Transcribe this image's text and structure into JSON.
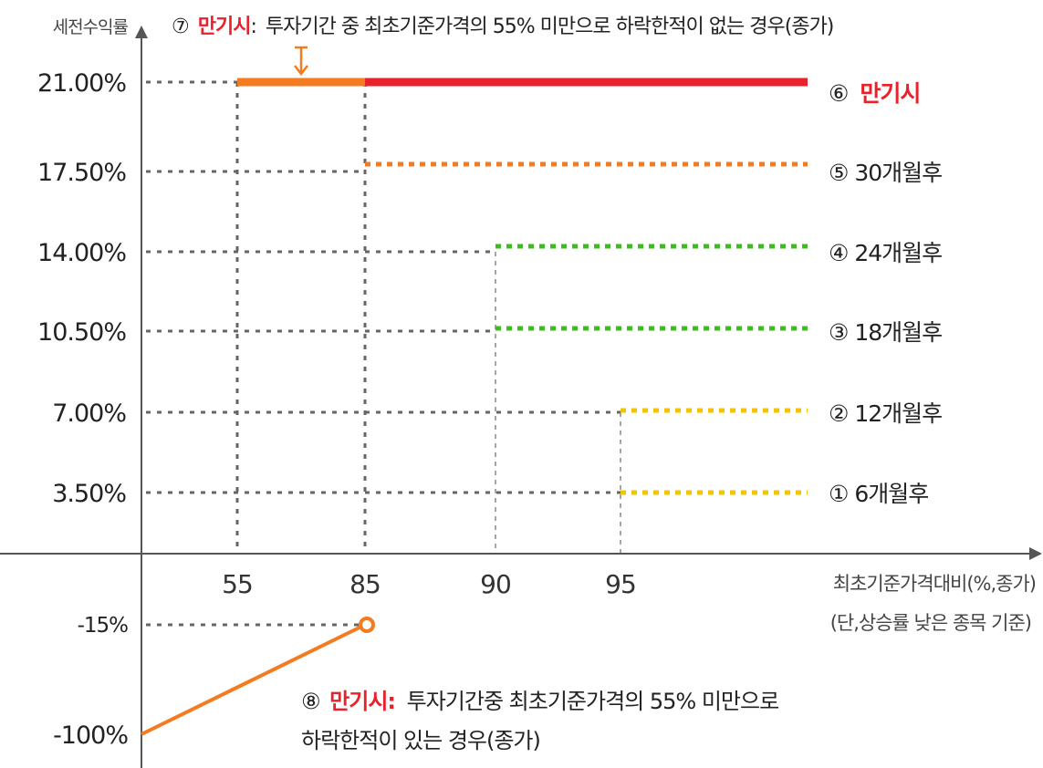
{
  "chart_data": {
    "type": "line",
    "ylabel": "세전수익률",
    "xlabel": "최초기준가격대비(%,종가)",
    "xlabel_note": "(단,상승률 낮은 종목 기준)",
    "y_ticks": [
      "21.00%",
      "17.50%",
      "14.00%",
      "10.50%",
      "7.00%",
      "3.50%",
      "-15%",
      "-100%"
    ],
    "x_ticks": [
      "55",
      "85",
      "90",
      "95"
    ],
    "series": [
      {
        "label": "① 6개월후",
        "return_pct": 3.5,
        "barrier_pct": 95,
        "color": "#f5c400",
        "style": "dotted"
      },
      {
        "label": "② 12개월후",
        "return_pct": 7.0,
        "barrier_pct": 95,
        "color": "#f5c400",
        "style": "dotted"
      },
      {
        "label": "③ 18개월후",
        "return_pct": 10.5,
        "barrier_pct": 90,
        "color": "#3cbc1f",
        "style": "dotted"
      },
      {
        "label": "④ 24개월후",
        "return_pct": 14.0,
        "barrier_pct": 90,
        "color": "#3cbc1f",
        "style": "dotted"
      },
      {
        "label": "⑤ 30개월후",
        "return_pct": 17.5,
        "barrier_pct": 85,
        "color": "#f47b20",
        "style": "dotted"
      },
      {
        "label_num": "⑥",
        "label_text": "만기시",
        "return_pct": 21.0,
        "barrier_pct": 85,
        "color": "#e8212b",
        "style": "solid"
      }
    ],
    "no_knock_in_segment": {
      "from_pct": 55,
      "to_pct": 85,
      "return_pct": 21.0,
      "color": "#f47b20"
    },
    "knock_in_line": {
      "points": [
        [
          0,
          -100
        ],
        [
          85,
          -15
        ]
      ],
      "color": "#f47b20"
    },
    "notes": {
      "n7_num": "⑦",
      "n7_red": "만기시",
      "n7_colon": ":",
      "n7_text": "투자기간 중 최초기준가격의 55% 미만으로 하락한적이 없는 경우(종가)",
      "n8_num": "⑧",
      "n8_red": "만기시:",
      "n8_text1": "투자기간중 최초기준가격의 55% 미만으로",
      "n8_text2": "하락한적이 있는 경우(종가)"
    }
  }
}
